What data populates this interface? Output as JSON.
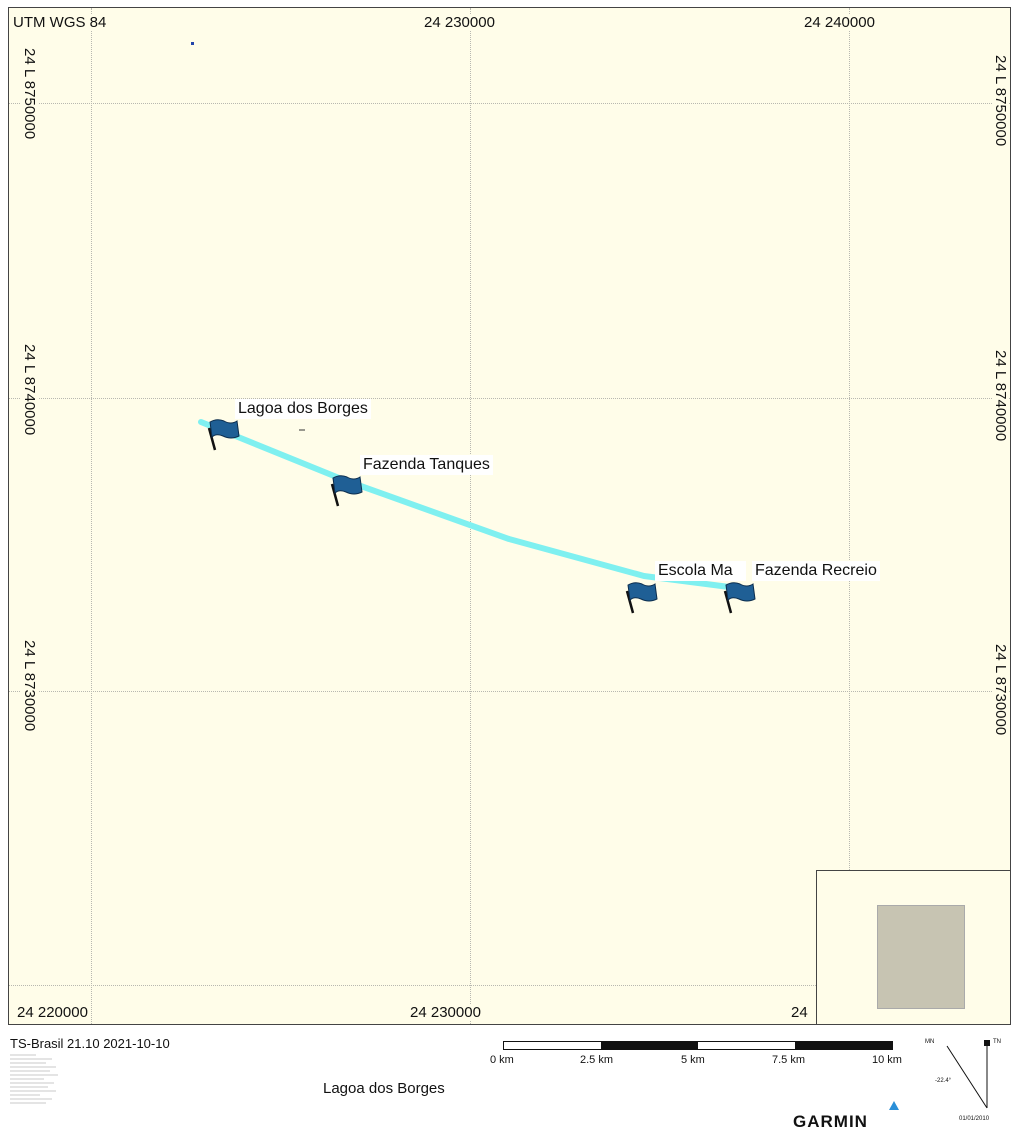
{
  "map": {
    "projection_label": "UTM WGS 84",
    "top_easting_labels": [
      "24 230000",
      "24 240000"
    ],
    "bottom_easting_labels": [
      "24 220000",
      "24 230000",
      "24"
    ],
    "left_northing_labels": [
      "24 L 8750000",
      "24 L 8740000",
      "24 L 8730000"
    ],
    "right_northing_labels": [
      "24 L 8750000",
      "24 L 8740000",
      "24 L 8730000"
    ],
    "waypoints": [
      {
        "name": "Lagoa dos Borges",
        "icon": "flag-icon"
      },
      {
        "name": "Fazenda Tanques",
        "icon": "flag-icon"
      },
      {
        "name": "Escola Ma",
        "icon": "flag-icon"
      },
      {
        "name": "Fazenda Recreio",
        "icon": "flag-icon"
      }
    ],
    "route_color": "#7ff0f0",
    "flag_color": "#1f5f95",
    "background_color": "#fffde9"
  },
  "footer": {
    "source_label": "TS-Brasil 21.10 2021-10-10",
    "map_title": "Lagoa dos Borges",
    "scale_labels": [
      "0 km",
      "2.5 km",
      "5 km",
      "7.5 km",
      "10 km"
    ],
    "north": {
      "mn_label": "MN",
      "tn_label": "TN",
      "declination": "-22.4°",
      "date": "01/01/2010"
    },
    "brand": "GARMIN"
  }
}
